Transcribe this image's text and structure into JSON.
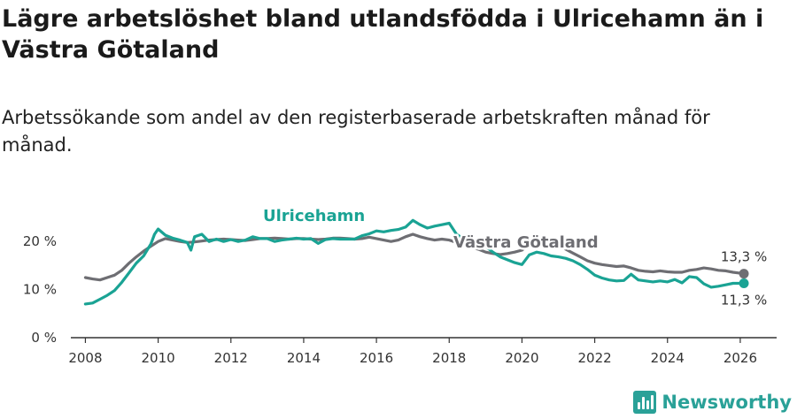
{
  "title": "Lägre arbetslöshet bland utlandsfödda i Ulricehamn än i Västra Götaland",
  "subtitle": "Arbetssökande som andel av den registerbaserade arbetskraften månad för månad.",
  "brand": {
    "name": "Newsworthy",
    "icon": "bar-chart-icon"
  },
  "colors": {
    "ulricehamn": "#1aa394",
    "vastra_gotaland": "#6e6e73",
    "axis": "#333333"
  },
  "chart_data": {
    "type": "line",
    "xlabel": "",
    "ylabel": "",
    "xlim": [
      2007.6,
      2027.0
    ],
    "ylim": [
      0,
      25
    ],
    "grid": false,
    "x_ticks": [
      2008,
      2010,
      2012,
      2014,
      2016,
      2018,
      2020,
      2022,
      2024,
      2026
    ],
    "x_tick_labels": [
      "2008",
      "2010",
      "2012",
      "2014",
      "2016",
      "2018",
      "2020",
      "2022",
      "2024",
      "2026"
    ],
    "y_ticks": [
      0,
      10,
      20
    ],
    "y_tick_labels": [
      "0 %",
      "10 %",
      "20 %"
    ],
    "series": [
      {
        "name": "Ulricehamn",
        "color": "#1aa394",
        "end_label": "11,3 %",
        "points": [
          [
            2008.0,
            7.0
          ],
          [
            2008.2,
            7.2
          ],
          [
            2008.4,
            8.0
          ],
          [
            2008.6,
            8.8
          ],
          [
            2008.8,
            9.8
          ],
          [
            2009.0,
            11.5
          ],
          [
            2009.2,
            13.5
          ],
          [
            2009.4,
            15.5
          ],
          [
            2009.6,
            17.0
          ],
          [
            2009.8,
            19.5
          ],
          [
            2009.9,
            21.5
          ],
          [
            2010.0,
            22.6
          ],
          [
            2010.2,
            21.3
          ],
          [
            2010.4,
            20.7
          ],
          [
            2010.6,
            20.3
          ],
          [
            2010.8,
            19.8
          ],
          [
            2010.9,
            18.2
          ],
          [
            2011.0,
            21.0
          ],
          [
            2011.2,
            21.5
          ],
          [
            2011.4,
            20.0
          ],
          [
            2011.6,
            20.5
          ],
          [
            2011.8,
            20.0
          ],
          [
            2012.0,
            20.4
          ],
          [
            2012.2,
            20.0
          ],
          [
            2012.4,
            20.3
          ],
          [
            2012.6,
            21.0
          ],
          [
            2012.8,
            20.6
          ],
          [
            2013.0,
            20.6
          ],
          [
            2013.2,
            20.0
          ],
          [
            2013.4,
            20.3
          ],
          [
            2013.6,
            20.5
          ],
          [
            2013.8,
            20.7
          ],
          [
            2014.0,
            20.5
          ],
          [
            2014.2,
            20.6
          ],
          [
            2014.4,
            19.6
          ],
          [
            2014.6,
            20.4
          ],
          [
            2014.8,
            20.6
          ],
          [
            2015.0,
            20.5
          ],
          [
            2015.2,
            20.5
          ],
          [
            2015.4,
            20.5
          ],
          [
            2015.6,
            21.2
          ],
          [
            2015.8,
            21.6
          ],
          [
            2016.0,
            22.2
          ],
          [
            2016.2,
            22.0
          ],
          [
            2016.4,
            22.3
          ],
          [
            2016.6,
            22.5
          ],
          [
            2016.8,
            23.0
          ],
          [
            2017.0,
            24.4
          ],
          [
            2017.2,
            23.5
          ],
          [
            2017.4,
            22.8
          ],
          [
            2017.6,
            23.2
          ],
          [
            2017.8,
            23.5
          ],
          [
            2018.0,
            23.8
          ],
          [
            2018.2,
            21.5
          ],
          [
            2018.4,
            20.5
          ],
          [
            2018.6,
            20.1
          ],
          [
            2018.8,
            20.4
          ],
          [
            2019.0,
            19.0
          ],
          [
            2019.2,
            17.8
          ],
          [
            2019.4,
            16.8
          ],
          [
            2019.6,
            16.2
          ],
          [
            2019.8,
            15.6
          ],
          [
            2020.0,
            15.2
          ],
          [
            2020.2,
            17.2
          ],
          [
            2020.4,
            17.8
          ],
          [
            2020.6,
            17.5
          ],
          [
            2020.8,
            17.0
          ],
          [
            2021.0,
            16.8
          ],
          [
            2021.2,
            16.5
          ],
          [
            2021.4,
            16.0
          ],
          [
            2021.6,
            15.2
          ],
          [
            2021.8,
            14.2
          ],
          [
            2022.0,
            13.0
          ],
          [
            2022.2,
            12.4
          ],
          [
            2022.4,
            12.0
          ],
          [
            2022.6,
            11.8
          ],
          [
            2022.8,
            11.9
          ],
          [
            2023.0,
            13.2
          ],
          [
            2023.2,
            12.0
          ],
          [
            2023.4,
            11.8
          ],
          [
            2023.6,
            11.6
          ],
          [
            2023.8,
            11.8
          ],
          [
            2024.0,
            11.6
          ],
          [
            2024.2,
            12.1
          ],
          [
            2024.4,
            11.4
          ],
          [
            2024.6,
            12.7
          ],
          [
            2024.8,
            12.5
          ],
          [
            2025.0,
            11.2
          ],
          [
            2025.2,
            10.5
          ],
          [
            2025.4,
            10.7
          ],
          [
            2025.6,
            11.0
          ],
          [
            2025.8,
            11.3
          ],
          [
            2026.0,
            11.3
          ],
          [
            2026.1,
            11.3
          ]
        ]
      },
      {
        "name": "Västra Götaland",
        "color": "#6e6e73",
        "end_label": "13,3 %",
        "points": [
          [
            2008.0,
            12.5
          ],
          [
            2008.2,
            12.2
          ],
          [
            2008.4,
            12.0
          ],
          [
            2008.6,
            12.5
          ],
          [
            2008.8,
            13.0
          ],
          [
            2009.0,
            14.0
          ],
          [
            2009.2,
            15.5
          ],
          [
            2009.4,
            16.8
          ],
          [
            2009.6,
            18.0
          ],
          [
            2009.8,
            19.0
          ],
          [
            2010.0,
            20.0
          ],
          [
            2010.2,
            20.6
          ],
          [
            2010.4,
            20.3
          ],
          [
            2010.6,
            20.0
          ],
          [
            2010.8,
            19.8
          ],
          [
            2011.0,
            19.9
          ],
          [
            2011.2,
            20.1
          ],
          [
            2011.4,
            20.3
          ],
          [
            2011.6,
            20.4
          ],
          [
            2011.8,
            20.5
          ],
          [
            2012.0,
            20.4
          ],
          [
            2012.2,
            20.3
          ],
          [
            2012.4,
            20.2
          ],
          [
            2012.6,
            20.4
          ],
          [
            2012.8,
            20.6
          ],
          [
            2013.0,
            20.6
          ],
          [
            2013.2,
            20.7
          ],
          [
            2013.4,
            20.6
          ],
          [
            2013.6,
            20.5
          ],
          [
            2013.8,
            20.6
          ],
          [
            2014.0,
            20.6
          ],
          [
            2014.2,
            20.5
          ],
          [
            2014.4,
            20.4
          ],
          [
            2014.6,
            20.5
          ],
          [
            2014.8,
            20.7
          ],
          [
            2015.0,
            20.7
          ],
          [
            2015.2,
            20.6
          ],
          [
            2015.4,
            20.5
          ],
          [
            2015.6,
            20.6
          ],
          [
            2015.8,
            20.9
          ],
          [
            2016.0,
            20.6
          ],
          [
            2016.2,
            20.3
          ],
          [
            2016.4,
            20.0
          ],
          [
            2016.6,
            20.3
          ],
          [
            2016.8,
            21.0
          ],
          [
            2017.0,
            21.5
          ],
          [
            2017.2,
            21.0
          ],
          [
            2017.4,
            20.6
          ],
          [
            2017.6,
            20.3
          ],
          [
            2017.8,
            20.5
          ],
          [
            2018.0,
            20.3
          ],
          [
            2018.2,
            19.8
          ],
          [
            2018.4,
            19.2
          ],
          [
            2018.6,
            18.8
          ],
          [
            2018.8,
            18.4
          ],
          [
            2019.0,
            17.8
          ],
          [
            2019.2,
            17.5
          ],
          [
            2019.4,
            17.3
          ],
          [
            2019.6,
            17.5
          ],
          [
            2019.8,
            17.8
          ],
          [
            2020.0,
            18.2
          ],
          [
            2020.2,
            19.5
          ],
          [
            2020.4,
            20.5
          ],
          [
            2020.6,
            20.4
          ],
          [
            2020.8,
            20.0
          ],
          [
            2021.0,
            19.3
          ],
          [
            2021.2,
            18.4
          ],
          [
            2021.4,
            17.6
          ],
          [
            2021.6,
            16.8
          ],
          [
            2021.8,
            16.0
          ],
          [
            2022.0,
            15.5
          ],
          [
            2022.2,
            15.2
          ],
          [
            2022.4,
            15.0
          ],
          [
            2022.6,
            14.8
          ],
          [
            2022.8,
            14.9
          ],
          [
            2023.0,
            14.5
          ],
          [
            2023.2,
            14.0
          ],
          [
            2023.4,
            13.8
          ],
          [
            2023.6,
            13.7
          ],
          [
            2023.8,
            13.9
          ],
          [
            2024.0,
            13.7
          ],
          [
            2024.2,
            13.6
          ],
          [
            2024.4,
            13.6
          ],
          [
            2024.6,
            14.0
          ],
          [
            2024.8,
            14.2
          ],
          [
            2025.0,
            14.5
          ],
          [
            2025.2,
            14.3
          ],
          [
            2025.4,
            14.0
          ],
          [
            2025.6,
            13.9
          ],
          [
            2025.8,
            13.6
          ],
          [
            2026.0,
            13.4
          ],
          [
            2026.1,
            13.3
          ]
        ]
      }
    ]
  }
}
